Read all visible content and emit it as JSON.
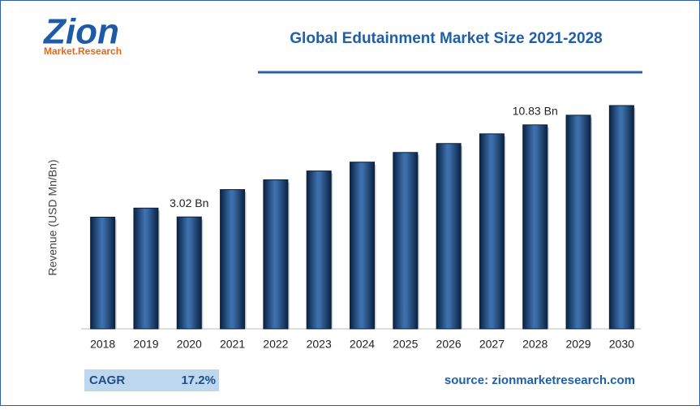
{
  "logo": {
    "name": "Zion",
    "tagline": "Market.Research"
  },
  "chart_data": {
    "type": "bar",
    "title": "Global Edutainment Market Size 2021-2028",
    "y_label": "Revenue (USD Mn/Bn)",
    "categories": [
      "2018",
      "2019",
      "2020",
      "2021",
      "2022",
      "2023",
      "2024",
      "2025",
      "2026",
      "2027",
      "2028",
      "2029",
      "2030"
    ],
    "values": [
      3.0,
      3.77,
      3.02,
      5.34,
      6.17,
      6.92,
      7.67,
      8.49,
      9.25,
      10.07,
      10.83,
      11.65,
      12.47
    ],
    "value_labels": [
      null,
      null,
      "3.02 Bn",
      null,
      null,
      null,
      null,
      null,
      null,
      null,
      "10.83 Bn",
      null,
      null
    ],
    "color": "#1f4f86"
  },
  "cagr": {
    "label": "CAGR",
    "value": "17.2%"
  },
  "source": "source: zionmarketresearch.com"
}
